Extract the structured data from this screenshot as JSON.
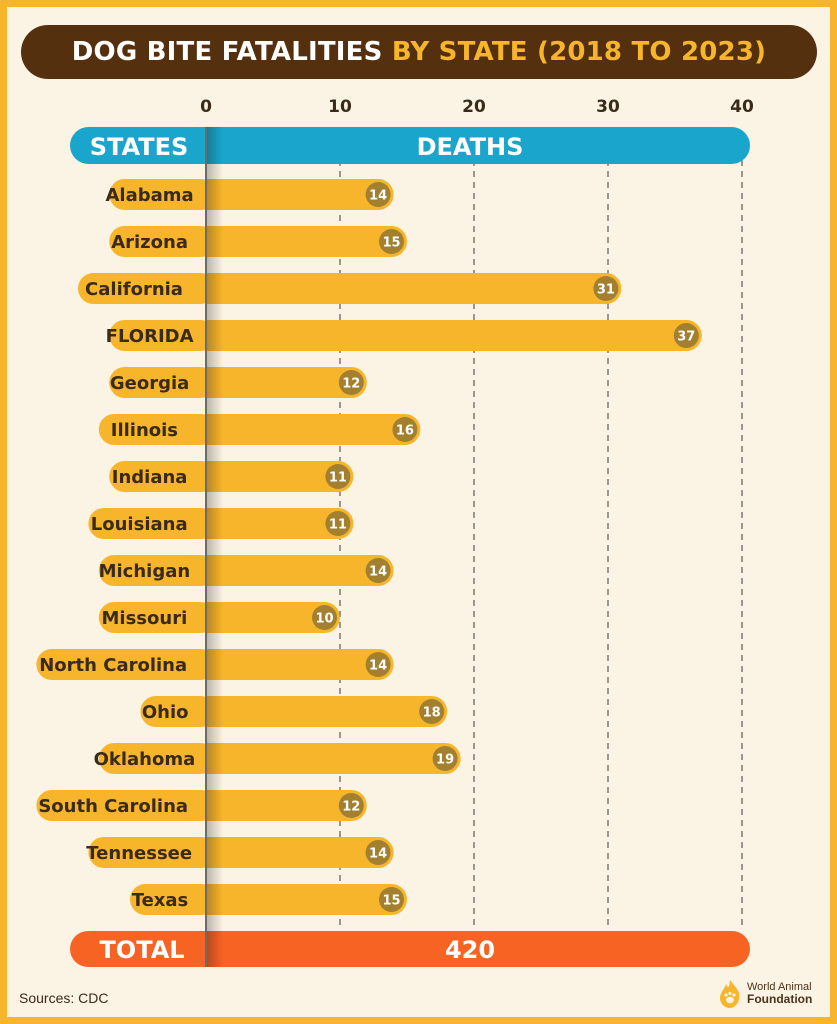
{
  "title": {
    "part1": "DOG BITE FATALITIES",
    "part2": "BY STATE (2018 TO 2023)"
  },
  "header": {
    "states_label": "STATES",
    "deaths_label": "DEATHS"
  },
  "total": {
    "label": "TOTAL",
    "value": "420"
  },
  "sources": "Sources: CDC",
  "logo": {
    "line1": "World Animal",
    "line2": "Foundation"
  },
  "colors": {
    "title_bg": "#54300f",
    "accent": "#f7b52c",
    "header": "#1aa6cc",
    "total": "#f76322",
    "badge": "#a2802f",
    "bar": "#f7b52c",
    "background": "#fbf3e4"
  },
  "chart_data": {
    "type": "bar",
    "orientation": "horizontal",
    "title": "DOG BITE FATALITIES BY STATE (2018 TO 2023)",
    "xlabel": "DEATHS",
    "ylabel": "STATES",
    "xlim": [
      0,
      40
    ],
    "xticks": [
      0,
      10,
      20,
      30,
      40
    ],
    "grid": true,
    "categories": [
      "Alabama",
      "Arizona",
      "California",
      "FLORIDA",
      "Georgia",
      "Illinois",
      "Indiana",
      "Louisiana",
      "Michigan",
      "Missouri",
      "North Carolina",
      "Ohio",
      "Oklahoma",
      "South Carolina",
      "Tennessee",
      "Texas"
    ],
    "values": [
      14,
      15,
      31,
      37,
      12,
      16,
      11,
      11,
      14,
      10,
      14,
      18,
      19,
      12,
      14,
      15
    ],
    "data_labels": [
      "14",
      "15",
      "31",
      "37",
      "12",
      "16",
      "11",
      "11",
      "14",
      "10",
      "14",
      "18",
      "19",
      "12",
      "14",
      "15"
    ]
  }
}
